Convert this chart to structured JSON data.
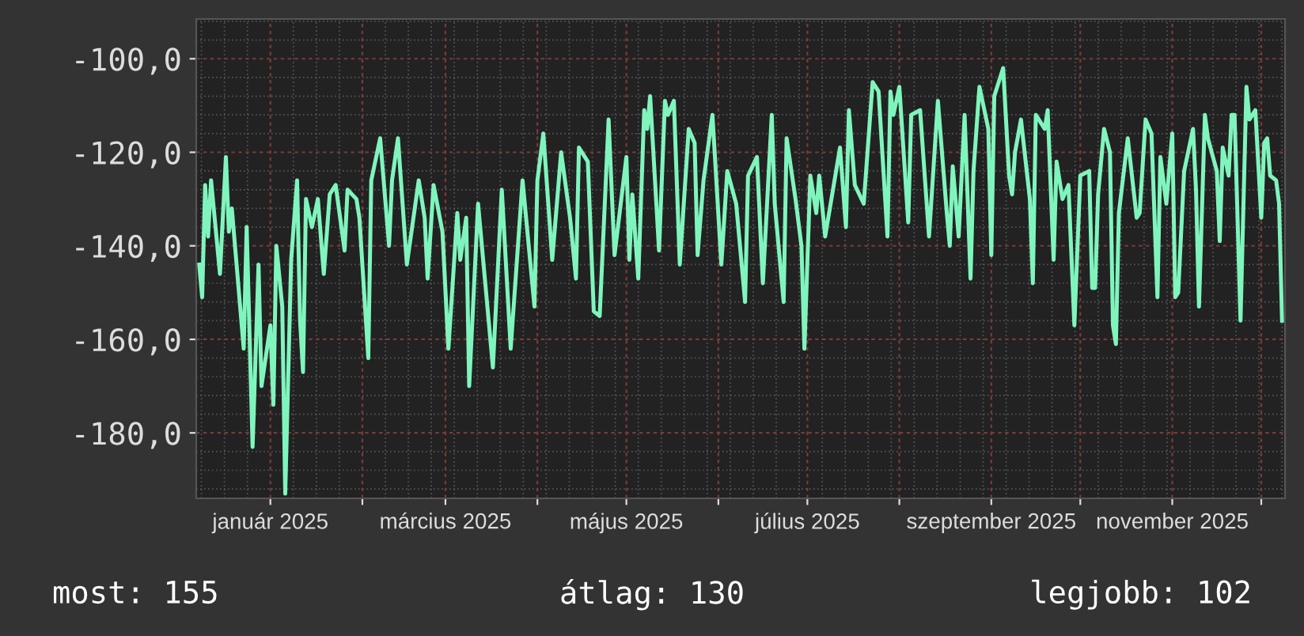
{
  "chart_data": {
    "type": "line",
    "x": [
      "2024-12-08",
      "2024-12-09",
      "2024-12-10",
      "2024-12-11",
      "2024-12-12",
      "2024-12-15",
      "2024-12-17",
      "2024-12-18",
      "2024-12-19",
      "2024-12-23",
      "2024-12-24",
      "2024-12-26",
      "2024-12-28",
      "2024-12-29",
      "2025-01-01",
      "2025-01-02",
      "2025-01-03",
      "2025-01-05",
      "2025-01-06",
      "2025-01-08",
      "2025-01-10",
      "2025-01-11",
      "2025-01-12",
      "2025-01-13",
      "2025-01-15",
      "2025-01-17",
      "2025-01-19",
      "2025-01-21",
      "2025-01-23",
      "2025-01-26",
      "2025-01-27",
      "2025-01-30",
      "2025-01-31",
      "2025-02-03",
      "2025-02-04",
      "2025-02-07",
      "2025-02-10",
      "2025-02-11",
      "2025-02-13",
      "2025-02-16",
      "2025-02-20",
      "2025-02-22",
      "2025-02-23",
      "2025-02-25",
      "2025-02-28",
      "2025-03-02",
      "2025-03-05",
      "2025-03-06",
      "2025-03-08",
      "2025-03-09",
      "2025-03-12",
      "2025-03-17",
      "2025-03-20",
      "2025-03-23",
      "2025-03-27",
      "2025-03-31",
      "2025-04-01",
      "2025-04-03",
      "2025-04-06",
      "2025-04-09",
      "2025-04-12",
      "2025-04-14",
      "2025-04-15",
      "2025-04-18",
      "2025-04-20",
      "2025-04-22",
      "2025-04-25",
      "2025-04-27",
      "2025-05-01",
      "2025-05-02",
      "2025-05-03",
      "2025-05-05",
      "2025-05-07",
      "2025-05-08",
      "2025-05-09",
      "2025-05-12",
      "2025-05-14",
      "2025-05-15",
      "2025-05-17",
      "2025-05-19",
      "2025-05-22",
      "2025-05-24",
      "2025-05-25",
      "2025-05-27",
      "2025-05-30",
      "2025-06-02",
      "2025-06-04",
      "2025-06-07",
      "2025-06-10",
      "2025-06-11",
      "2025-06-14",
      "2025-06-16",
      "2025-06-19",
      "2025-06-20",
      "2025-06-23",
      "2025-06-24",
      "2025-06-27",
      "2025-06-29",
      "2025-06-30",
      "2025-07-02",
      "2025-07-04",
      "2025-07-05",
      "2025-07-07",
      "2025-07-12",
      "2025-07-14",
      "2025-07-15",
      "2025-07-17",
      "2025-07-20",
      "2025-07-23",
      "2025-07-25",
      "2025-07-28",
      "2025-07-29",
      "2025-07-30",
      "2025-08-01",
      "2025-08-04",
      "2025-08-05",
      "2025-08-08",
      "2025-08-11",
      "2025-08-14",
      "2025-08-17",
      "2025-08-18",
      "2025-08-19",
      "2025-08-21",
      "2025-08-23",
      "2025-08-25",
      "2025-08-26",
      "2025-08-28",
      "2025-08-31",
      "2025-09-01",
      "2025-09-02",
      "2025-09-05",
      "2025-09-07",
      "2025-09-08",
      "2025-09-09",
      "2025-09-11",
      "2025-09-14",
      "2025-09-15",
      "2025-09-16",
      "2025-09-19",
      "2025-09-20",
      "2025-09-22",
      "2025-09-23",
      "2025-09-25",
      "2025-09-27",
      "2025-09-29",
      "2025-10-01",
      "2025-10-04",
      "2025-10-05",
      "2025-10-06",
      "2025-10-07",
      "2025-10-09",
      "2025-10-11",
      "2025-10-12",
      "2025-10-13",
      "2025-10-14",
      "2025-10-17",
      "2025-10-20",
      "2025-10-21",
      "2025-10-23",
      "2025-10-25",
      "2025-10-27",
      "2025-10-28",
      "2025-10-30",
      "2025-11-01",
      "2025-11-02",
      "2025-11-03",
      "2025-11-05",
      "2025-11-08",
      "2025-11-09",
      "2025-11-10",
      "2025-11-12",
      "2025-11-13",
      "2025-11-16",
      "2025-11-17",
      "2025-11-18",
      "2025-11-20",
      "2025-11-21",
      "2025-11-22",
      "2025-11-24",
      "2025-11-26",
      "2025-11-27",
      "2025-11-29",
      "2025-12-01",
      "2025-12-02",
      "2025-12-03",
      "2025-12-04",
      "2025-12-06",
      "2025-12-07",
      "2025-12-08"
    ],
    "series": [
      {
        "color": "#7ff5bd",
        "values": [
          -144,
          -151,
          -127,
          -138,
          -126,
          -146,
          -121,
          -137,
          -132,
          -162,
          -136,
          -183,
          -144,
          -170,
          -157,
          -174,
          -140,
          -153,
          -193,
          -143,
          -126,
          -156,
          -167,
          -130,
          -136,
          -130,
          -146,
          -129,
          -127,
          -141,
          -128,
          -130,
          -134,
          -164,
          -126,
          -117,
          -140,
          -126,
          -117,
          -144,
          -126,
          -134,
          -147,
          -127,
          -137,
          -162,
          -133,
          -143,
          -134,
          -170,
          -131,
          -166,
          -128,
          -162,
          -126,
          -153,
          -126,
          -116,
          -143,
          -120,
          -134,
          -147,
          -119,
          -122,
          -154,
          -155,
          -113,
          -142,
          -121,
          -143,
          -129,
          -147,
          -111,
          -115,
          -108,
          -141,
          -109,
          -112,
          -109,
          -144,
          -115,
          -118,
          -142,
          -126,
          -112,
          -144,
          -124,
          -131,
          -152,
          -125,
          -121,
          -148,
          -112,
          -131,
          -152,
          -117,
          -130,
          -140,
          -162,
          -125,
          -133,
          -125,
          -138,
          -119,
          -136,
          -111,
          -127,
          -131,
          -105,
          -107,
          -138,
          -107,
          -112,
          -106,
          -135,
          -112,
          -111,
          -138,
          -109,
          -133,
          -140,
          -123,
          -138,
          -112,
          -147,
          -124,
          -106,
          -115,
          -142,
          -108,
          -102,
          -125,
          -129,
          -120,
          -113,
          -130,
          -148,
          -112,
          -115,
          -111,
          -143,
          -122,
          -130,
          -127,
          -157,
          -125,
          -124,
          -149,
          -149,
          -129,
          -115,
          -120,
          -157,
          -161,
          -133,
          -117,
          -134,
          -133,
          -113,
          -116,
          -151,
          -121,
          -131,
          -116,
          -151,
          -150,
          -124,
          -115,
          -128,
          -153,
          -112,
          -117,
          -124,
          -139,
          -119,
          -125,
          -112,
          -112,
          -156,
          -106,
          -113,
          -111,
          -134,
          -118,
          -117,
          -125,
          -126,
          -131,
          -156
        ]
      }
    ],
    "xlim": [
      "2024-12-07",
      "2025-12-09"
    ],
    "xticks": [
      {
        "value": "2025-01-01",
        "label": "január 2025"
      },
      {
        "value": "2025-02-01",
        "label": null
      },
      {
        "value": "2025-03-01",
        "label": "március 2025"
      },
      {
        "value": "2025-04-01",
        "label": null
      },
      {
        "value": "2025-05-01",
        "label": "május 2025"
      },
      {
        "value": "2025-06-01",
        "label": null
      },
      {
        "value": "2025-07-01",
        "label": "július 2025"
      },
      {
        "value": "2025-08-01",
        "label": null
      },
      {
        "value": "2025-09-01",
        "label": "szeptember 2025"
      },
      {
        "value": "2025-10-01",
        "label": null
      },
      {
        "value": "2025-11-01",
        "label": "november 2025"
      },
      {
        "value": "2025-12-01",
        "label": null
      }
    ],
    "ylim": [
      -194,
      -91.5
    ],
    "yticks": [
      {
        "value": -100,
        "label": "-100,0"
      },
      {
        "value": -120,
        "label": "-120,0"
      },
      {
        "value": -140,
        "label": "-140,0"
      },
      {
        "value": -160,
        "label": "-160,0"
      },
      {
        "value": -180,
        "label": "-180,0"
      }
    ],
    "grid": true,
    "annotations": [
      "most: 155",
      "átlag: 130",
      "legjobb: 102"
    ]
  }
}
